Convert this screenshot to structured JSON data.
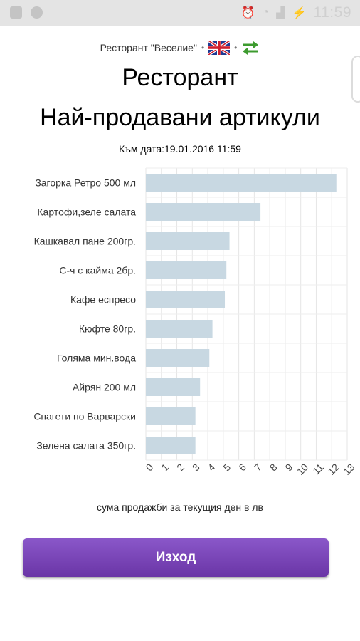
{
  "status_bar": {
    "time": "11:59",
    "left_icons": [
      "image-icon",
      "sync-icon"
    ],
    "right_icons": [
      "alarm-icon",
      "wifi-icon",
      "signal-icon",
      "battery-charging-icon"
    ]
  },
  "header": {
    "restaurant_name": "Ресторант \"Веселие\"",
    "separator": "•",
    "language_icon": "uk-flag-icon",
    "swap_icon": "swap-arrows-icon",
    "title": "Ресторант",
    "subtitle": "Най-продавани артикули",
    "as_of_label": "Към дата:",
    "as_of_value": "19.01.2016 11:59"
  },
  "chart_data": {
    "type": "bar",
    "orientation": "horizontal",
    "categories": [
      "Загорка Ретро 500 мл",
      "Картофи,зеле салата",
      "Кашкавал пане 200гр.",
      "С-ч с кайма 2бр.",
      "Кафе еспресо",
      "Кюфте 80гр.",
      "Голяма мин.вода",
      "Айрян 200 мл",
      "Спагети по Варварски",
      "Зелена салата 350гр."
    ],
    "values": [
      12.3,
      7.4,
      5.4,
      5.2,
      5.1,
      4.3,
      4.1,
      3.5,
      3.2,
      3.2
    ],
    "xlim": [
      0,
      13
    ],
    "xticks": [
      "0",
      "1",
      "2",
      "3",
      "4",
      "5",
      "6",
      "7",
      "8",
      "9",
      "10",
      "11",
      "12",
      "13"
    ],
    "xlabel": "сума продажби за текущия ден в лв",
    "grid": true,
    "bar_color": "#c8d8e2"
  },
  "actions": {
    "exit_label": "Изход"
  }
}
